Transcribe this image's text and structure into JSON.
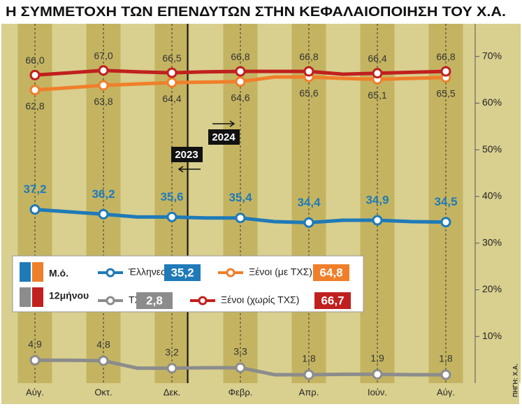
{
  "chart_data": {
    "type": "line",
    "title": "Η ΣΥΜΜΕΤΟΧΗ ΤΩΝ ΕΠΕΝΔΥΤΩΝ ΣΤΗΝ ΚΕΦΑΛΑΙΟΠΟΙΗΣΗ ΤΟΥ Χ.Α.",
    "categories": [
      "Αύγ.",
      null,
      "Οκτ.",
      null,
      "Δεκ.",
      null,
      "Φεβρ.",
      null,
      "Απρ.",
      null,
      "Ιούν.",
      null,
      "Αύγ."
    ],
    "series": [
      {
        "name": "Έλληνες",
        "color": "#1f7ab8",
        "values": [
          37.2,
          36.7,
          36.2,
          35.6,
          35.6,
          35.4,
          35.4,
          34.6,
          34.4,
          34.9,
          34.9,
          34.6,
          34.5
        ],
        "value_labels": [
          "37,2",
          null,
          "36,2",
          null,
          "35,6",
          null,
          "35,4",
          null,
          "34,4",
          null,
          "34,9",
          null,
          "34,5"
        ],
        "average": {
          "value": 35.2,
          "label": "35,2"
        }
      },
      {
        "name": "Ξένοι (με ΤΧΣ)",
        "color": "#f07f2a",
        "values": [
          62.8,
          63.3,
          63.8,
          64.1,
          64.4,
          64.5,
          64.6,
          65.6,
          65.6,
          65.3,
          65.1,
          65.3,
          65.5
        ],
        "value_labels": [
          "62,8",
          null,
          "63,8",
          null,
          "64,4",
          null,
          "64,6",
          null,
          "65,6",
          null,
          "65,1",
          null,
          "65,5"
        ],
        "average": {
          "value": 64.8,
          "label": "64,8"
        }
      },
      {
        "name": "ΤΧΣ",
        "color": "#8c8c8c",
        "values": [
          4.9,
          4.9,
          4.8,
          3.2,
          3.2,
          3.3,
          3.3,
          1.8,
          1.8,
          1.9,
          1.9,
          1.8,
          1.8
        ],
        "value_labels": [
          "4,9",
          null,
          "4,8",
          null,
          "3,2",
          null,
          "3,3",
          null,
          "1,8",
          null,
          "1,9",
          null,
          "1,8"
        ],
        "average": {
          "value": 2.8,
          "label": "2,8"
        }
      },
      {
        "name": "Ξένοι (χωρίς ΤΧΣ)",
        "color": "#c0201e",
        "values": [
          66.0,
          66.5,
          67.0,
          66.7,
          66.5,
          66.7,
          66.8,
          66.8,
          66.8,
          66.2,
          66.4,
          66.6,
          66.8
        ],
        "value_labels": [
          "66,0",
          null,
          "67,0",
          null,
          "66,5",
          null,
          "66,8",
          null,
          "66,8",
          null,
          "66,4",
          null,
          "66,8"
        ],
        "average": {
          "value": 66.7,
          "label": "66,7"
        }
      }
    ],
    "legend_title": [
      "Μ.ό.",
      "12μήνου"
    ],
    "annotations": [
      "2023",
      "2024"
    ],
    "source": "ΠΗΓΗ: Χ.Α.",
    "ylim": [
      0,
      77
    ],
    "yticks": [
      {
        "value": 10,
        "label": "10%"
      },
      {
        "value": 20,
        "label": "20%"
      },
      {
        "value": 30,
        "label": "30%"
      },
      {
        "value": 40,
        "label": "40%"
      },
      {
        "value": 50,
        "label": "50%"
      },
      {
        "value": 60,
        "label": "60%"
      },
      {
        "value": 70,
        "label": "70%"
      }
    ]
  }
}
